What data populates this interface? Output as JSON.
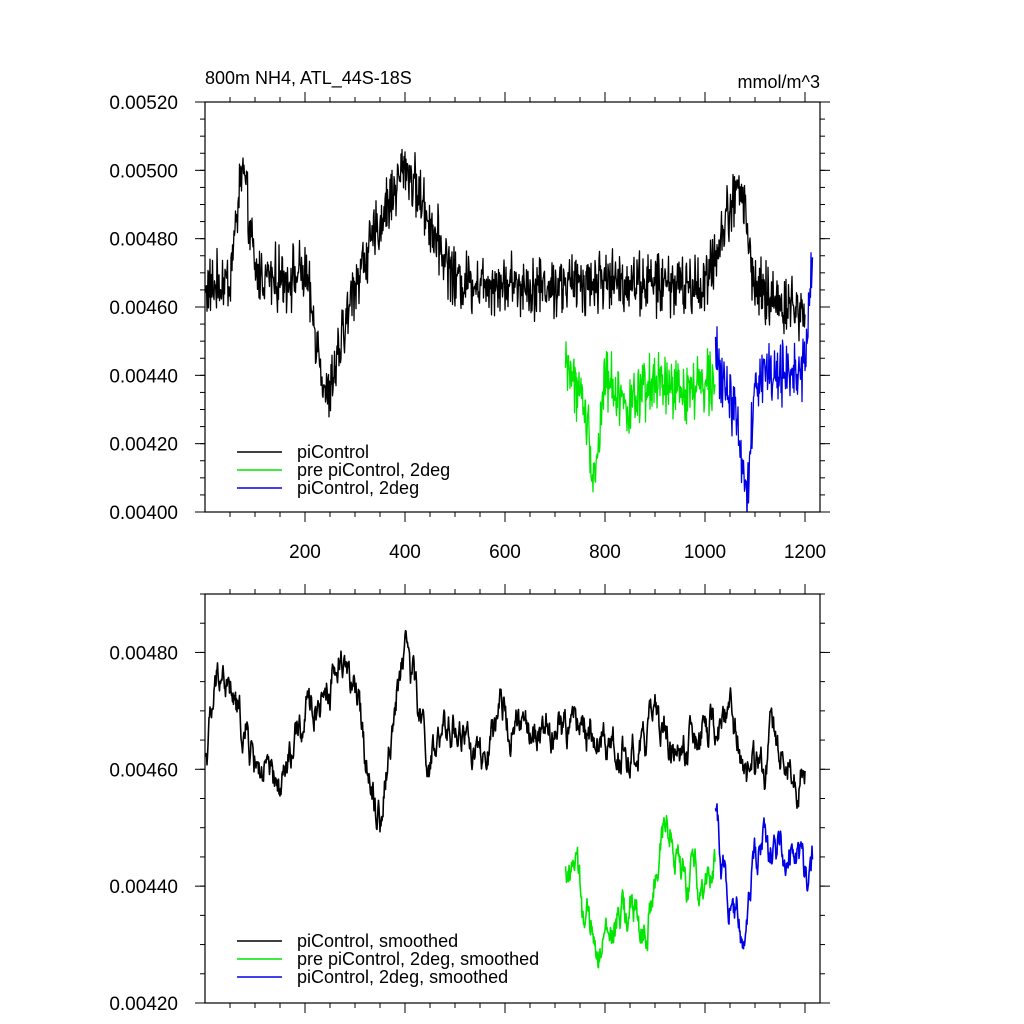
{
  "chart_data": [
    {
      "type": "line",
      "title": "800m NH4, ATL_44S-18S",
      "units": "mmol/m^3",
      "xlim": [
        0,
        1230
      ],
      "ylim": [
        0.004,
        0.0052
      ],
      "xticks": [
        200,
        400,
        600,
        800,
        1000,
        1200
      ],
      "yticks": [
        0.004,
        0.0042,
        0.0044,
        0.0046,
        0.0048,
        0.005,
        0.0052
      ],
      "ytick_labels": [
        "0.00400",
        "0.00420",
        "0.00440",
        "0.00460",
        "0.00480",
        "0.00500",
        "0.00520"
      ],
      "legend_position": "bottom-left",
      "series": [
        {
          "name": "piControl",
          "color": "#000000",
          "x_start": 1,
          "x_end": 1200,
          "keypoints": [
            [
              1,
              0.00465
            ],
            [
              50,
              0.00468
            ],
            [
              75,
              0.00502
            ],
            [
              100,
              0.0047
            ],
            [
              150,
              0.00468
            ],
            [
              200,
              0.0047
            ],
            [
              245,
              0.00432
            ],
            [
              300,
              0.00467
            ],
            [
              400,
              0.00502
            ],
            [
              500,
              0.00468
            ],
            [
              600,
              0.00467
            ],
            [
              700,
              0.00466
            ],
            [
              800,
              0.00468
            ],
            [
              900,
              0.00467
            ],
            [
              1000,
              0.00466
            ],
            [
              1070,
              0.00498
            ],
            [
              1100,
              0.00465
            ],
            [
              1200,
              0.00458
            ]
          ]
        },
        {
          "name": "pre piControl, 2deg",
          "color": "#00e600",
          "x_start": 721,
          "x_end": 1020,
          "keypoints": [
            [
              721,
              0.00445
            ],
            [
              760,
              0.0043
            ],
            [
              780,
              0.0041
            ],
            [
              800,
              0.0044
            ],
            [
              850,
              0.0043
            ],
            [
              900,
              0.00438
            ],
            [
              950,
              0.00435
            ],
            [
              1000,
              0.00438
            ],
            [
              1020,
              0.0044
            ]
          ]
        },
        {
          "name": "piControl, 2deg",
          "color": "#0000e6",
          "x_start": 1021,
          "x_end": 1215,
          "keypoints": [
            [
              1021,
              0.00445
            ],
            [
              1060,
              0.0043
            ],
            [
              1085,
              0.00405
            ],
            [
              1100,
              0.0044
            ],
            [
              1150,
              0.0044
            ],
            [
              1200,
              0.00442
            ],
            [
              1215,
              0.00475
            ]
          ]
        }
      ]
    },
    {
      "type": "line",
      "xlim": [
        0,
        1230
      ],
      "ylim": [
        0.0042,
        0.0049
      ],
      "xticks": [
        200,
        400,
        600,
        800,
        1000,
        1200
      ],
      "yticks": [
        0.0042,
        0.0044,
        0.0046,
        0.0048
      ],
      "ytick_labels": [
        "0.00420",
        "0.00440",
        "0.00460",
        "0.00480"
      ],
      "legend_position": "bottom-left",
      "series": [
        {
          "name": "piControl, smoothed",
          "color": "#000000",
          "x_start": 1,
          "x_end": 1200,
          "keypoints": [
            [
              1,
              0.00462
            ],
            [
              30,
              0.00478
            ],
            [
              60,
              0.0047
            ],
            [
              100,
              0.00462
            ],
            [
              145,
              0.00455
            ],
            [
              200,
              0.00468
            ],
            [
              280,
              0.0048
            ],
            [
              350,
              0.00452
            ],
            [
              400,
              0.00483
            ],
            [
              450,
              0.0046
            ],
            [
              500,
              0.00468
            ],
            [
              560,
              0.0046
            ],
            [
              600,
              0.0047
            ],
            [
              650,
              0.00465
            ],
            [
              700,
              0.00466
            ],
            [
              750,
              0.00468
            ],
            [
              800,
              0.00465
            ],
            [
              850,
              0.00462
            ],
            [
              900,
              0.00468
            ],
            [
              950,
              0.00462
            ],
            [
              1000,
              0.00465
            ],
            [
              1050,
              0.0047
            ],
            [
              1090,
              0.00458
            ],
            [
              1140,
              0.00465
            ],
            [
              1200,
              0.00458
            ]
          ]
        },
        {
          "name": "pre piControl, 2deg, smoothed",
          "color": "#00e600",
          "x_start": 721,
          "x_end": 1020,
          "keypoints": [
            [
              721,
              0.00442
            ],
            [
              740,
              0.00445
            ],
            [
              760,
              0.00432
            ],
            [
              800,
              0.0043
            ],
            [
              850,
              0.00436
            ],
            [
              880,
              0.00432
            ],
            [
              930,
              0.00452
            ],
            [
              960,
              0.0044
            ],
            [
              1000,
              0.00442
            ],
            [
              1020,
              0.00444
            ]
          ]
        },
        {
          "name": "piControl, 2deg, smoothed",
          "color": "#0000e6",
          "x_start": 1021,
          "x_end": 1215,
          "keypoints": [
            [
              1021,
              0.00452
            ],
            [
              1050,
              0.00438
            ],
            [
              1075,
              0.00432
            ],
            [
              1100,
              0.00446
            ],
            [
              1150,
              0.00448
            ],
            [
              1200,
              0.00443
            ],
            [
              1215,
              0.00445
            ]
          ]
        }
      ]
    }
  ]
}
